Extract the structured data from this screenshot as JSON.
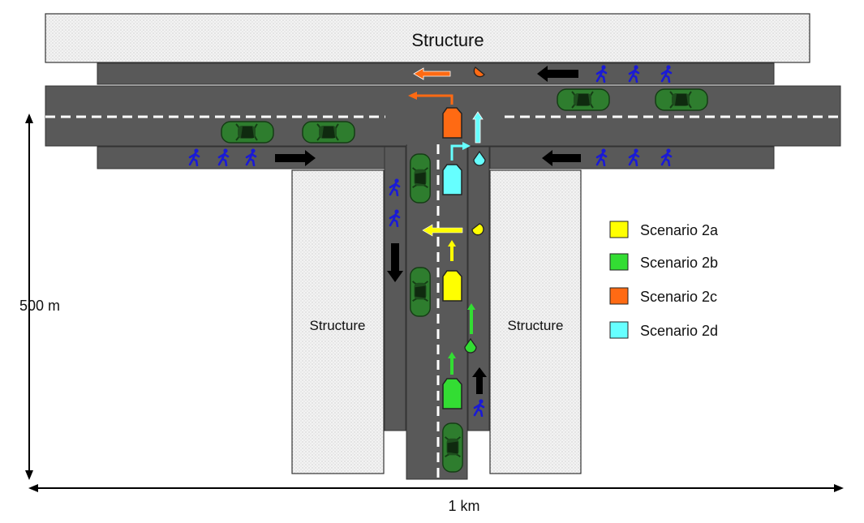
{
  "structures": {
    "top_label": "Structure",
    "left_label": "Structure",
    "right_label": "Structure"
  },
  "dimensions": {
    "vertical": "500 m",
    "horizontal": "1 km"
  },
  "legend": [
    {
      "label": "Scenario 2a",
      "color": "#ffff00"
    },
    {
      "label": "Scenario 2b",
      "color": "#33dd33"
    },
    {
      "label": "Scenario 2c",
      "color": "#ff6a13"
    },
    {
      "label": "Scenario 2d",
      "color": "#66ffff"
    }
  ],
  "colors": {
    "road": "#595959",
    "pedestrian": "#1a1ad6",
    "car": "#2e7d2e",
    "arrow": "#000000"
  }
}
